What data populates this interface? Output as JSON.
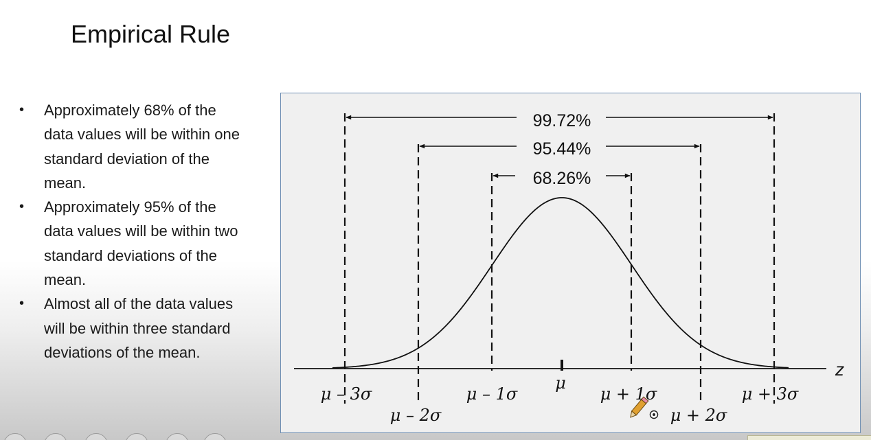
{
  "slide": {
    "title": "Empirical Rule"
  },
  "bullets": [
    {
      "marker": "•",
      "lines": [
        "Approximately 68% of the",
        "data values will be within one",
        "standard deviation of the",
        "mean."
      ]
    },
    {
      "marker": "•",
      "lines": [
        "Approximately 95% of the",
        "data values will be within two",
        "standard deviations of the",
        "mean."
      ]
    },
    {
      "marker": "•",
      "lines": [
        "Almost all of the data values",
        "will be within three standard",
        "deviations of the mean."
      ]
    }
  ],
  "diagram": {
    "percentages": {
      "three_sigma": "99.72%",
      "two_sigma": "95.44%",
      "one_sigma": "68.26%"
    },
    "axis_label": "z",
    "markers": {
      "m3": "μ – 3σ",
      "m2": "μ – 2σ",
      "m1": "μ – 1σ",
      "mu": "μ",
      "p1": "μ + 1σ",
      "p2": "μ + 2σ",
      "p3": "μ + 3σ"
    }
  },
  "overlay": {
    "cursor_icon": "pencil-icon"
  }
}
